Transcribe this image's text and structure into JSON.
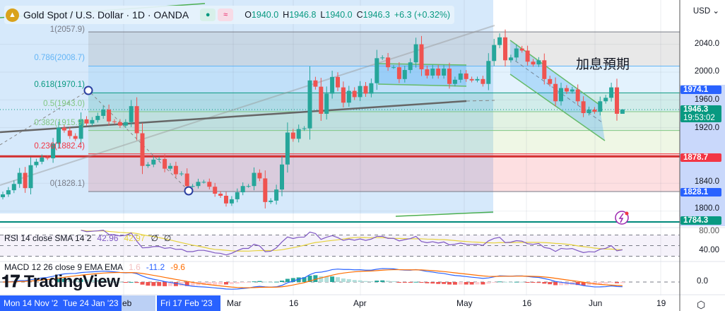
{
  "header": {
    "symbol": "Gold Spot / U.S. Dollar · 1D · OANDA",
    "logo_glyph": "▲",
    "status_dot": "●",
    "status_wave": "≈",
    "open_label": "O",
    "open": "1940.0",
    "high_label": "H",
    "high": "1946.8",
    "low_label": "L",
    "low": "1940.0",
    "close_label": "C",
    "close": "1946.3",
    "change": "+6.3 (+0.32%)"
  },
  "price_axis": {
    "currency": "USD ⌄",
    "ticks": [
      "2040.0",
      "2000.0",
      "1960.0",
      "1920.0",
      "1840.0",
      "1800.0"
    ],
    "tags": [
      {
        "text": "1974.1",
        "color": "#2962ff"
      },
      {
        "text": "1946.3",
        "sub": "19:53:02",
        "color": "#089981"
      },
      {
        "text": "1878.7",
        "color": "#f23645"
      },
      {
        "text": "1828.1",
        "color": "#2962ff"
      },
      {
        "text": "1784.3",
        "color": "#089981"
      }
    ],
    "rsi_ticks": [
      "80.00",
      "40.00"
    ],
    "macd_ticks": [
      "0.0"
    ]
  },
  "fib": [
    {
      "label": "1(2057.9)",
      "price": 2057.9,
      "color": "#787b86"
    },
    {
      "label": "0.786(2008.7)",
      "price": 2008.7,
      "color": "#64b5f6"
    },
    {
      "label": "0.618(1970.1)",
      "price": 1970.1,
      "color": "#089981"
    },
    {
      "label": "0.5(1943.0)",
      "price": 1943.0,
      "color": "#81c784"
    },
    {
      "label": "0.382(1915.9)",
      "price": 1915.9,
      "color": "#81c784"
    },
    {
      "label": "0.236(1882.4)",
      "price": 1882.4,
      "color": "#f23645"
    },
    {
      "label": "0(1828.1)",
      "price": 1828.1,
      "color": "#787b86"
    }
  ],
  "annotation": "加息預期",
  "rsi_legend": {
    "name": "RSI 14 close SMA 14 2",
    "rsi": "42.96",
    "sma": "42.97",
    "v1": "∅",
    "v2": "∅"
  },
  "macd_legend": {
    "name": "MACD 12 26 close 9 EMA EMA",
    "hist": "1.6",
    "macd": "-11.2",
    "signal": "-9.6"
  },
  "brand": "TradingView",
  "time_axis": {
    "selected": [
      "Mon 14 Nov '2",
      "Tue 24 Jan '23",
      "Fri 17 Feb '23"
    ],
    "ticks": [
      "eb",
      "Mar",
      "16",
      "Apr",
      "May",
      "16",
      "Jun",
      "19"
    ]
  },
  "colors": {
    "up": "#26a69a",
    "down": "#ef5350",
    "accent": "#2962ff"
  },
  "chart_data": {
    "type": "candlestick",
    "title": "Gold Spot / U.S. Dollar · 1D · OANDA",
    "ylabel": "USD",
    "ylim": [
      1770,
      2075
    ],
    "first_date": "2022-12-30",
    "last_date": "2023-06-05",
    "close": [
      1824,
      1830,
      1839,
      1855,
      1833,
      1866,
      1871,
      1877,
      1876,
      1897,
      1920,
      1916,
      1908,
      1904,
      1932,
      1926,
      1931,
      1937,
      1946,
      1929,
      1928,
      1923,
      1928,
      1951,
      1912,
      1865,
      1867,
      1874,
      1875,
      1861,
      1865,
      1853,
      1854,
      1836,
      1836,
      1842,
      1842,
      1835,
      1825,
      1822,
      1811,
      1817,
      1827,
      1836,
      1836,
      1855,
      1847,
      1813,
      1815,
      1831,
      1867,
      1913,
      1904,
      1918,
      1919,
      1988,
      1979,
      1940,
      1969,
      1993,
      1978,
      1956,
      1973,
      1964,
      1980,
      1969,
      1984,
      2020,
      2021,
      2007,
      2007,
      1990,
      2003,
      2014,
      2040,
      2004,
      1995,
      2005,
      1995,
      2005,
      1983,
      1989,
      1998,
      1990,
      1988,
      1990,
      1983,
      2016,
      2039,
      2050,
      2017,
      2021,
      2034,
      2031,
      2015,
      2011,
      2017,
      1990,
      1983,
      1958,
      1977,
      1972,
      1975,
      1958,
      1941,
      1946,
      1943,
      1958,
      1963,
      1978,
      1940,
      1946.3
    ],
    "last_bar": {
      "open": 1940.0,
      "high": 1946.8,
      "low": 1940.0,
      "close": 1946.3
    },
    "horizontal_lines": [
      1878.7,
      1784.3
    ],
    "rsi_levels": [
      70,
      50,
      30
    ]
  }
}
